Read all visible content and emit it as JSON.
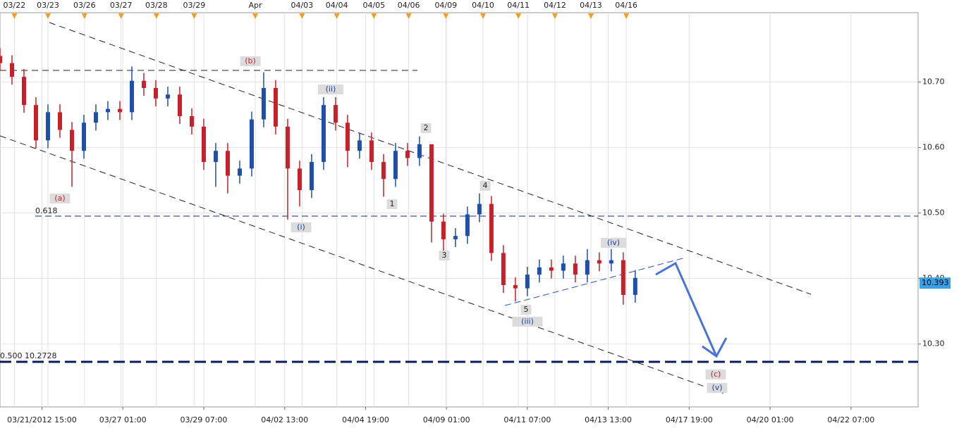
{
  "chart_data": {
    "type": "candlestick",
    "xlim": [
      0,
      153.2
    ],
    "ylim": [
      10.204,
      10.806
    ],
    "yticks": [
      {
        "value": 10.3,
        "label": "10.30"
      },
      {
        "value": 10.4,
        "label": "10.40"
      },
      {
        "value": 10.5,
        "label": "10.50"
      },
      {
        "value": 10.6,
        "label": "10.60"
      },
      {
        "value": 10.7,
        "label": "10.70"
      }
    ],
    "xticks": [
      {
        "value": 7,
        "label": "03/21/2012 15:00"
      },
      {
        "value": 20.5,
        "label": "03/27 01:00"
      },
      {
        "value": 34,
        "label": "03/29 07:00"
      },
      {
        "value": 47.5,
        "label": "04/02 13:00"
      },
      {
        "value": 61,
        "label": "04/04 19:00"
      },
      {
        "value": 74.5,
        "label": "04/09 01:00"
      },
      {
        "value": 88,
        "label": "04/11 07:00"
      },
      {
        "value": 101.5,
        "label": "04/13 13:00"
      },
      {
        "value": 115,
        "label": "04/17 19:00"
      },
      {
        "value": 128.5,
        "label": "04/20 01:00"
      },
      {
        "value": 142,
        "label": "04/22 07:00"
      }
    ],
    "top_ticks": [
      {
        "value": 2.4,
        "label": "03/22"
      },
      {
        "value": 8,
        "label": "03/23"
      },
      {
        "value": 14.1,
        "label": "03/26"
      },
      {
        "value": 20.2,
        "label": "03/27"
      },
      {
        "value": 26.1,
        "label": "03/28"
      },
      {
        "value": 32.4,
        "label": "03/29"
      },
      {
        "value": 42.6,
        "label": "Apr"
      },
      {
        "value": 50.4,
        "label": "04/03"
      },
      {
        "value": 56.2,
        "label": "04/04"
      },
      {
        "value": 62.4,
        "label": "04/05"
      },
      {
        "value": 68.2,
        "label": "04/06"
      },
      {
        "value": 74.4,
        "label": "04/09"
      },
      {
        "value": 80.6,
        "label": "04/10"
      },
      {
        "value": 86.5,
        "label": "04/11"
      },
      {
        "value": 92.6,
        "label": "04/12"
      },
      {
        "value": 98.6,
        "label": "04/13"
      },
      {
        "value": 104.5,
        "label": "04/16"
      }
    ],
    "grid": true,
    "up_color": "#1f4fa8",
    "down_color": "#c8202a",
    "x": [
      0,
      2,
      4,
      6,
      8,
      10,
      12,
      14,
      16,
      18,
      20,
      22,
      24,
      26,
      28,
      30,
      32,
      34,
      36,
      38,
      40,
      42,
      44,
      46,
      48,
      50,
      52,
      54,
      56,
      58,
      60,
      62,
      64,
      66,
      68,
      70,
      72,
      74,
      76,
      78,
      80,
      82,
      84,
      86,
      88,
      90,
      92,
      94,
      96,
      98,
      100,
      102,
      104,
      106
    ],
    "open": [
      10.74,
      10.729,
      10.708,
      10.665,
      10.611,
      10.654,
      10.627,
      10.595,
      10.638,
      10.654,
      10.659,
      10.654,
      10.702,
      10.691,
      10.675,
      10.681,
      10.648,
      10.632,
      10.578,
      10.595,
      10.557,
      10.568,
      10.643,
      10.691,
      10.632,
      10.568,
      10.535,
      10.578,
      10.665,
      10.638,
      10.595,
      10.611,
      10.578,
      10.552,
      10.595,
      10.584,
      10.605,
      10.487,
      10.46,
      10.465,
      10.498,
      10.514,
      10.439,
      10.39,
      10.385,
      10.406,
      10.417,
      10.412,
      10.423,
      10.406,
      10.428,
      10.423,
      10.428,
      10.375
    ],
    "high": [
      10.752,
      10.741,
      10.72,
      10.677,
      10.666,
      10.666,
      10.639,
      10.65,
      10.666,
      10.671,
      10.671,
      10.724,
      10.714,
      10.703,
      10.693,
      10.693,
      10.66,
      10.644,
      10.607,
      10.607,
      10.58,
      10.655,
      10.715,
      10.703,
      10.644,
      10.58,
      10.59,
      10.677,
      10.677,
      10.65,
      10.623,
      10.623,
      10.59,
      10.607,
      10.607,
      10.617,
      10.605,
      10.499,
      10.477,
      10.51,
      10.53,
      10.526,
      10.451,
      10.402,
      10.418,
      10.429,
      10.429,
      10.435,
      10.435,
      10.445,
      10.44,
      10.445,
      10.44,
      10.413
    ],
    "low": [
      10.717,
      10.696,
      10.653,
      10.599,
      10.599,
      10.615,
      10.54,
      10.583,
      10.626,
      10.642,
      10.642,
      10.642,
      10.679,
      10.663,
      10.663,
      10.636,
      10.62,
      10.566,
      10.54,
      10.53,
      10.545,
      10.556,
      10.631,
      10.62,
      10.49,
      10.51,
      10.523,
      10.566,
      10.626,
      10.57,
      10.583,
      10.566,
      10.525,
      10.54,
      10.572,
      10.572,
      10.455,
      10.44,
      10.448,
      10.453,
      10.486,
      10.427,
      10.378,
      10.365,
      10.373,
      10.394,
      10.4,
      10.4,
      10.394,
      10.394,
      10.411,
      10.411,
      10.36,
      10.363
    ],
    "close": [
      10.729,
      10.708,
      10.665,
      10.611,
      10.654,
      10.627,
      10.595,
      10.638,
      10.654,
      10.659,
      10.654,
      10.702,
      10.691,
      10.675,
      10.681,
      10.648,
      10.632,
      10.578,
      10.595,
      10.557,
      10.568,
      10.643,
      10.691,
      10.632,
      10.568,
      10.535,
      10.578,
      10.665,
      10.638,
      10.595,
      10.611,
      10.578,
      10.552,
      10.595,
      10.584,
      10.605,
      10.487,
      10.46,
      10.465,
      10.498,
      10.514,
      10.439,
      10.39,
      10.385,
      10.406,
      10.417,
      10.412,
      10.423,
      10.406,
      10.428,
      10.423,
      10.428,
      10.375,
      10.401
    ],
    "last_price": 10.393,
    "level_labels": [
      "0.618",
      "0.500 10.2728"
    ],
    "annotations": [
      {
        "text": "(a)",
        "color": "#c8202a"
      },
      {
        "text": "(b)",
        "color": "#c8202a"
      },
      {
        "text": "(i)",
        "color": "#1f3fa8"
      },
      {
        "text": "(ii)",
        "color": "#1f3fa8"
      },
      {
        "text": "1",
        "color": "#222222"
      },
      {
        "text": "2",
        "color": "#222222"
      },
      {
        "text": "3",
        "color": "#222222"
      },
      {
        "text": "4",
        "color": "#222222"
      },
      {
        "text": "5",
        "color": "#222222"
      },
      {
        "text": "(iii)",
        "color": "#1f3fa8"
      },
      {
        "text": "(iv)",
        "color": "#1f3fa8"
      },
      {
        "text": "(c)",
        "color": "#c8202a"
      },
      {
        "text": "(v)",
        "color": "#1f3fa8"
      }
    ]
  }
}
